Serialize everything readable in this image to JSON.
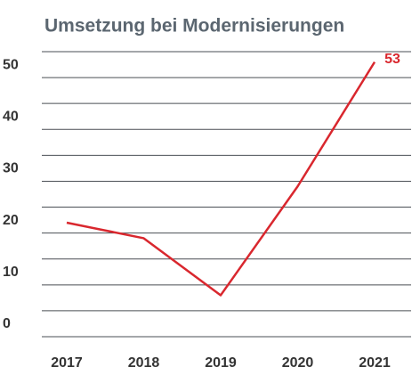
{
  "chart_data": {
    "type": "line",
    "title": "Umsetzung bei Modernisierungen",
    "categories": [
      "2017",
      "2018",
      "2019",
      "2020",
      "2021"
    ],
    "series": [
      {
        "name": "Umsetzung",
        "color": "#d9272e",
        "values": [
          22,
          19,
          8,
          29,
          53
        ]
      }
    ],
    "ylim": [
      0,
      55
    ],
    "yticks": [
      0,
      10,
      20,
      30,
      40,
      50
    ],
    "grid_ticks": [
      5,
      15,
      25,
      35,
      45,
      55
    ],
    "grid": true
  }
}
